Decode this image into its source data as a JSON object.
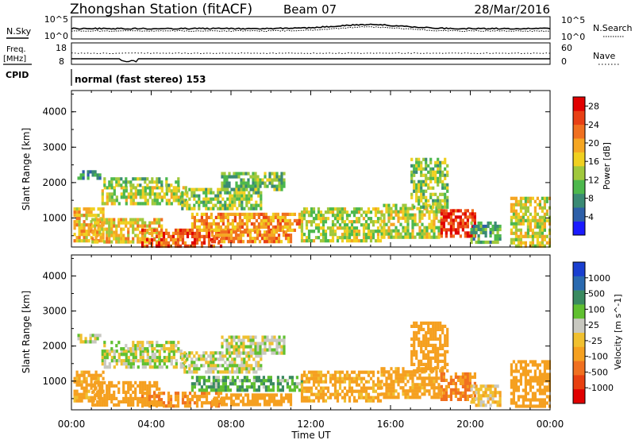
{
  "header": {
    "station": "Zhongshan Station (fitACF)",
    "beam": "Beam 07",
    "date": "28/Mar/2016"
  },
  "top_panels": {
    "nsky_label": "N.Sky",
    "nsky_top": "10^5",
    "nsky_bottom": "10^0",
    "nsearch_label": "N.Search",
    "nsearch_top": "10^5",
    "nsearch_bottom": "10^0",
    "freq_label": "Freq.",
    "freq_unit": "[MHz]",
    "freq_top": "18",
    "freq_bottom": "8",
    "nave_label": "Nave",
    "nave_top": "60",
    "nave_bottom": "0",
    "cpid_label": "CPID",
    "cpid_text": "normal (fast stereo) 153"
  },
  "chart_data": [
    {
      "type": "heatmap",
      "name": "power",
      "xlabel": "Time UT",
      "ylabel": "Slant Range [km]",
      "x_ticks": [
        "00:00",
        "04:00",
        "08:00",
        "12:00",
        "16:00",
        "20:00",
        "00:00"
      ],
      "x_range_hours": [
        0,
        24
      ],
      "y_ticks": [
        1000,
        2000,
        3000,
        4000
      ],
      "ylim": [
        180,
        4600
      ],
      "colorbar_label": "Power [dB]",
      "colorbar_ticks": [
        "4",
        "8",
        "12",
        "16",
        "20",
        "24",
        "28"
      ],
      "colorbar_range": [
        0,
        30
      ],
      "colors": [
        "#1a1aff",
        "#2d5fa8",
        "#3a8a74",
        "#4db84d",
        "#a0c83c",
        "#f0d020",
        "#f5a623",
        "#f07020",
        "#e84015",
        "#e00000"
      ],
      "regions": [
        {
          "t0": 0.1,
          "t1": 1.6,
          "r0": 400,
          "r1": 1300,
          "value": 18
        },
        {
          "t0": 0.3,
          "t1": 1.4,
          "r0": 2150,
          "r1": 2350,
          "value": 8
        },
        {
          "t0": 1.5,
          "t1": 5.7,
          "r0": 1400,
          "r1": 1900,
          "value": 14
        },
        {
          "t0": 1.6,
          "t1": 5.4,
          "r0": 1950,
          "r1": 2150,
          "value": 12
        },
        {
          "t0": 1.0,
          "t1": 4.5,
          "r0": 350,
          "r1": 1000,
          "value": 17
        },
        {
          "t0": 3.5,
          "t1": 7.5,
          "r0": 250,
          "r1": 700,
          "value": 24
        },
        {
          "t0": 5.5,
          "t1": 9.5,
          "r0": 1250,
          "r1": 1850,
          "value": 13
        },
        {
          "t0": 7.5,
          "t1": 10.7,
          "r0": 1800,
          "r1": 2300,
          "value": 11
        },
        {
          "t0": 6.0,
          "t1": 11.5,
          "r0": 700,
          "r1": 1150,
          "value": 20
        },
        {
          "t0": 7.0,
          "t1": 11.0,
          "r0": 300,
          "r1": 650,
          "value": 22
        },
        {
          "t0": 11.5,
          "t1": 15.5,
          "r0": 400,
          "r1": 1300,
          "value": 14
        },
        {
          "t0": 15.5,
          "t1": 18.5,
          "r0": 500,
          "r1": 1400,
          "value": 15
        },
        {
          "t0": 17.0,
          "t1": 18.8,
          "r0": 1300,
          "r1": 2700,
          "value": 13
        },
        {
          "t0": 18.5,
          "t1": 20.2,
          "r0": 500,
          "r1": 1250,
          "value": 26
        },
        {
          "t0": 20.0,
          "t1": 21.5,
          "r0": 300,
          "r1": 900,
          "value": 10
        },
        {
          "t0": 22.0,
          "t1": 24.0,
          "r0": 250,
          "r1": 1600,
          "value": 16
        }
      ]
    },
    {
      "type": "heatmap",
      "name": "velocity",
      "xlabel": "Time UT",
      "ylabel": "Slant Range [km]",
      "x_ticks": [
        "00:00",
        "04:00",
        "08:00",
        "12:00",
        "16:00",
        "20:00",
        "00:00"
      ],
      "x_range_hours": [
        0,
        24
      ],
      "y_ticks": [
        1000,
        2000,
        3000,
        4000
      ],
      "ylim": [
        180,
        4600
      ],
      "colorbar_label": "Velocity [m s^-1]",
      "colorbar_ticks": [
        "1000",
        "500",
        "100",
        "25",
        "-25",
        "-100",
        "-500",
        "-1000"
      ],
      "colors": [
        "#1a3fd0",
        "#2a6ab0",
        "#3a8a60",
        "#60c030",
        "#c8c8c0",
        "#f0c030",
        "#f5a020",
        "#f07020",
        "#e84010",
        "#e00000"
      ],
      "regions": [
        {
          "t0": 0.1,
          "t1": 1.6,
          "r0": 400,
          "r1": 1300,
          "value": -200
        },
        {
          "t0": 0.3,
          "t1": 1.4,
          "r0": 2150,
          "r1": 2350,
          "value": 0
        },
        {
          "t0": 1.5,
          "t1": 5.7,
          "r0": 1400,
          "r1": 1900,
          "value": 0
        },
        {
          "t0": 1.6,
          "t1": 5.4,
          "r0": 1950,
          "r1": 2150,
          "value": 0
        },
        {
          "t0": 1.0,
          "t1": 4.5,
          "r0": 350,
          "r1": 1000,
          "value": -300
        },
        {
          "t0": 3.5,
          "t1": 7.5,
          "r0": 250,
          "r1": 700,
          "value": -400
        },
        {
          "t0": 5.5,
          "t1": 9.5,
          "r0": 1250,
          "r1": 1850,
          "value": 0
        },
        {
          "t0": 7.5,
          "t1": 10.7,
          "r0": 1800,
          "r1": 2300,
          "value": 0
        },
        {
          "t0": 6.0,
          "t1": 11.5,
          "r0": 700,
          "r1": 1150,
          "value": 80
        },
        {
          "t0": 7.0,
          "t1": 11.0,
          "r0": 300,
          "r1": 650,
          "value": -250
        },
        {
          "t0": 11.5,
          "t1": 15.5,
          "r0": 400,
          "r1": 1300,
          "value": -150
        },
        {
          "t0": 15.5,
          "t1": 18.5,
          "r0": 500,
          "r1": 1400,
          "value": -200
        },
        {
          "t0": 17.0,
          "t1": 18.8,
          "r0": 1300,
          "r1": 2700,
          "value": -300
        },
        {
          "t0": 18.5,
          "t1": 20.2,
          "r0": 500,
          "r1": 1250,
          "value": -500
        },
        {
          "t0": 20.0,
          "t1": 21.5,
          "r0": 300,
          "r1": 900,
          "value": -60
        },
        {
          "t0": 22.0,
          "t1": 24.0,
          "r0": 250,
          "r1": 1600,
          "value": -300
        }
      ]
    }
  ]
}
